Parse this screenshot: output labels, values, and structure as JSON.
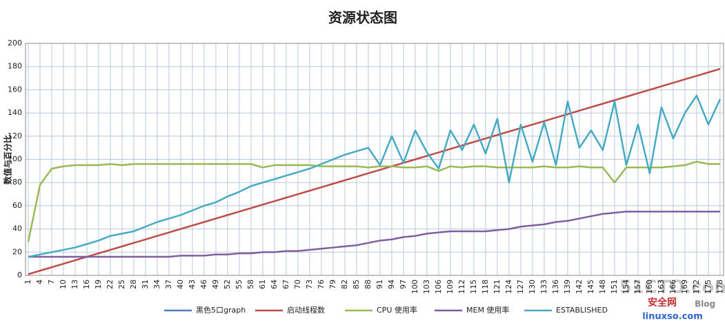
{
  "chart_data": {
    "type": "line",
    "title": "资源状态图",
    "y_label": "数值与百分比",
    "x": [
      1,
      4,
      7,
      10,
      13,
      16,
      19,
      22,
      25,
      28,
      31,
      34,
      37,
      40,
      43,
      46,
      49,
      52,
      55,
      58,
      61,
      64,
      67,
      70,
      73,
      76,
      79,
      82,
      85,
      88,
      91,
      94,
      97,
      100,
      103,
      106,
      109,
      112,
      115,
      118,
      121,
      124,
      127,
      130,
      133,
      136,
      139,
      142,
      145,
      148,
      151,
      154,
      157,
      160,
      163,
      166,
      169,
      172,
      175,
      178
    ],
    "xlim": [
      0.3,
      178.9
    ],
    "xticks": [
      1,
      4,
      7,
      10,
      13,
      16,
      19,
      22,
      25,
      28,
      31,
      34,
      37,
      40,
      43,
      46,
      49,
      52,
      55,
      58,
      61,
      64,
      67,
      70,
      73,
      76,
      79,
      82,
      85,
      88,
      91,
      94,
      97,
      100,
      103,
      106,
      109,
      112,
      115,
      118,
      121,
      124,
      127,
      130,
      133,
      136,
      139,
      142,
      145,
      148,
      151,
      154,
      157,
      160,
      163,
      166,
      169,
      172,
      175,
      178
    ],
    "ylim": [
      0,
      200
    ],
    "yticks": [
      0,
      20,
      40,
      60,
      80,
      100,
      120,
      140,
      160,
      180,
      200
    ],
    "grid": true,
    "series": [
      {
        "name": "黑色5口graph",
        "color": "#4a7ebb"
      },
      {
        "name": "启动线程数",
        "color": "#be4b48",
        "values": [
          1,
          4,
          7,
          10,
          13,
          16,
          19,
          22,
          25,
          28,
          31,
          34,
          37,
          40,
          43,
          46,
          49,
          52,
          55,
          58,
          61,
          64,
          67,
          70,
          73,
          76,
          79,
          82,
          85,
          88,
          91,
          94,
          97,
          100,
          103,
          106,
          109,
          112,
          115,
          118,
          121,
          124,
          127,
          130,
          133,
          136,
          139,
          142,
          145,
          148,
          151,
          154,
          157,
          160,
          163,
          166,
          169,
          172,
          175,
          178
        ]
      },
      {
        "name": "CPU 使用率",
        "color": "#98b954",
        "values": [
          29,
          78,
          92,
          94,
          95,
          95,
          95,
          96,
          95,
          96,
          96,
          96,
          96,
          96,
          96,
          96,
          96,
          96,
          96,
          96,
          93,
          95,
          95,
          95,
          95,
          94,
          94,
          94,
          94,
          93,
          94,
          94,
          93,
          93,
          94,
          90,
          94,
          93,
          94,
          94,
          93,
          93,
          93,
          93,
          94,
          93,
          93,
          94,
          93,
          93,
          80,
          93,
          93,
          93,
          93,
          94,
          95,
          98,
          96,
          96
        ]
      },
      {
        "name": "MEM 使用率",
        "color": "#7d5fa0",
        "values": [
          16,
          16,
          16,
          16,
          16,
          16,
          16,
          16,
          16,
          16,
          16,
          16,
          16,
          17,
          17,
          17,
          18,
          18,
          19,
          19,
          20,
          20,
          21,
          21,
          22,
          23,
          24,
          25,
          26,
          28,
          30,
          31,
          33,
          34,
          36,
          37,
          38,
          38,
          38,
          38,
          39,
          40,
          42,
          43,
          44,
          46,
          47,
          49,
          51,
          53,
          54,
          55,
          55,
          55,
          55,
          55,
          55,
          55,
          55,
          55
        ]
      },
      {
        "name": "ESTABLISHED",
        "color": "#46aac5",
        "values": [
          16,
          18,
          20,
          22,
          24,
          27,
          30,
          34,
          36,
          38,
          42,
          46,
          49,
          52,
          56,
          60,
          63,
          68,
          72,
          77,
          80,
          83,
          86,
          89,
          92,
          96,
          100,
          104,
          107,
          110,
          95,
          120,
          97,
          125,
          106,
          92,
          125,
          108,
          130,
          105,
          135,
          80,
          130,
          98,
          132,
          95,
          150,
          110,
          125,
          108,
          150,
          95,
          130,
          88,
          145,
          118,
          140,
          155,
          130,
          152
        ]
      }
    ]
  },
  "watermark": {
    "site": "51CTO.com",
    "name": "安全网",
    "url": "linuxso.com",
    "tag": "Blog"
  }
}
